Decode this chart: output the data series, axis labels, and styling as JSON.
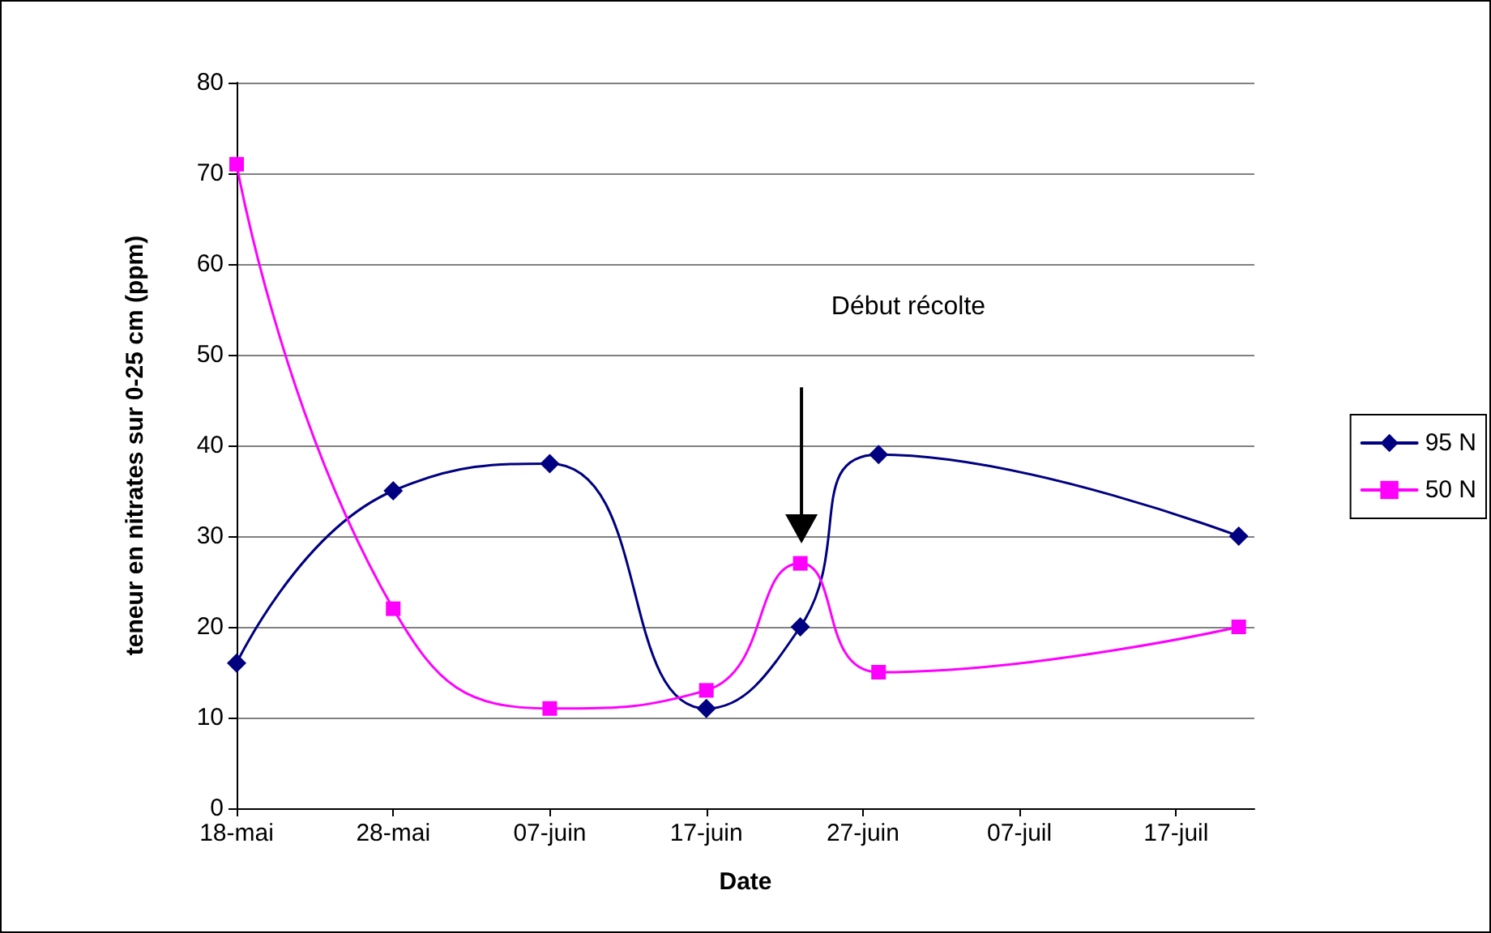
{
  "chart_data": {
    "type": "line",
    "xlabel": "Date",
    "ylabel": "teneur en nitrates sur 0-25 cm (ppm)",
    "annotations": [
      "Début récolte"
    ],
    "series": [
      {
        "name": "95 N",
        "color": "#000080",
        "marker": "diamond",
        "x": [
          "--05-18",
          "--05-28",
          "--06-07",
          "--06-17",
          "--06-23",
          "--06-28",
          "--07-21"
        ],
        "values": [
          16,
          35,
          38,
          11,
          20,
          39,
          30
        ]
      },
      {
        "name": "50 N",
        "color": "#ff00ff",
        "marker": "square",
        "x": [
          "--05-18",
          "--05-28",
          "--06-07",
          "--06-17",
          "--06-23",
          "--06-28",
          "--07-21"
        ],
        "values": [
          71,
          22,
          11,
          13,
          27,
          15,
          20
        ]
      }
    ],
    "xlim": [
      "--05-18",
      "--07-22"
    ],
    "xticks": [
      {
        "value": "--05-18",
        "label": "18-mai"
      },
      {
        "value": "--05-28",
        "label": "28-mai"
      },
      {
        "value": "--06-07",
        "label": "07-juin"
      },
      {
        "value": "--06-17",
        "label": "17-juin"
      },
      {
        "value": "--06-27",
        "label": "27-juin"
      },
      {
        "value": "--07-07",
        "label": "07-juil"
      },
      {
        "value": "--07-17",
        "label": "17-juil"
      }
    ],
    "ylim": [
      0,
      80
    ],
    "yticks": [
      0,
      10,
      20,
      30,
      40,
      50,
      60,
      70,
      80
    ],
    "grid": "y",
    "legend": "right",
    "line_style": "solid"
  }
}
